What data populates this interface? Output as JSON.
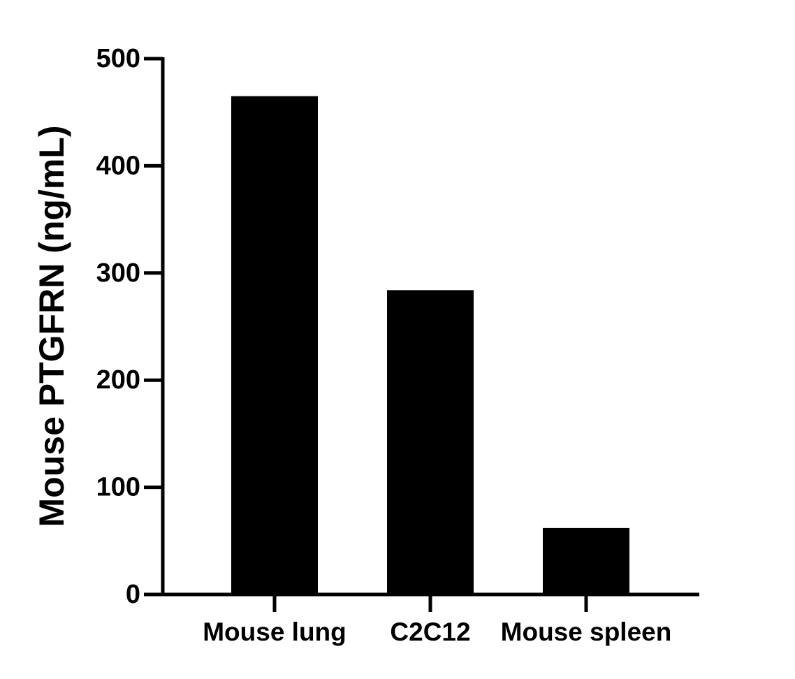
{
  "chart_data": {
    "type": "bar",
    "y_label": "Mouse PTGFRN (ng/mL)",
    "categories": [
      "Mouse lung",
      "C2C12",
      "Mouse spleen"
    ],
    "values": [
      465,
      284,
      62
    ],
    "color": "#000000",
    "ylim": [
      0,
      500
    ],
    "yticks": [
      0,
      100,
      200,
      300,
      400,
      500
    ]
  }
}
